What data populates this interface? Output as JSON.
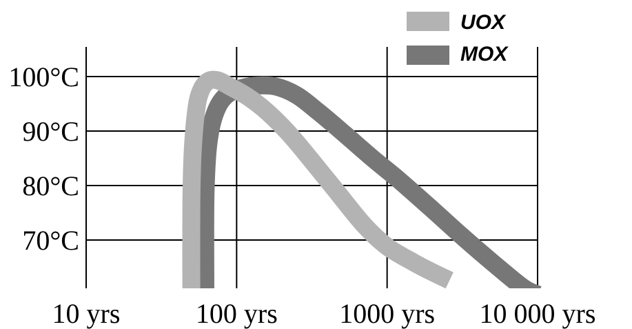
{
  "chart_data": {
    "type": "line",
    "title": "",
    "xlabel": "",
    "ylabel": "",
    "x_scale": "log",
    "xlim": [
      10,
      10000
    ],
    "ylim": [
      60,
      105
    ],
    "grid": true,
    "legend_position": "top-right",
    "x_ticks": [
      {
        "value": 10,
        "label": "10 yrs"
      },
      {
        "value": 100,
        "label": "100 yrs"
      },
      {
        "value": 1000,
        "label": "1000 yrs"
      },
      {
        "value": 10000,
        "label": "10 000 yrs"
      }
    ],
    "y_ticks": [
      {
        "value": 70,
        "label": "70°C"
      },
      {
        "value": 80,
        "label": "80°C"
      },
      {
        "value": 90,
        "label": "90°C"
      },
      {
        "value": 100,
        "label": "100°C"
      }
    ],
    "series": [
      {
        "name": "UOX",
        "color": "#b3b3b3",
        "x": [
          50,
          50,
          51,
          54,
          58,
          65,
          75,
          90,
          120,
          160,
          220,
          300,
          450,
          700,
          1000,
          1500,
          2000,
          2600
        ],
        "y": [
          60,
          76,
          86,
          94,
          97.5,
          99.2,
          99.3,
          98.2,
          96.2,
          93.5,
          89.7,
          85.3,
          79.3,
          72.8,
          68.8,
          65.9,
          64.1,
          62.6
        ]
      },
      {
        "name": "MOX",
        "color": "#777777",
        "x": [
          62,
          62,
          64,
          68,
          75,
          85,
          100,
          130,
          180,
          250,
          350,
          500,
          800,
          1200,
          2000,
          3000,
          5000,
          8000,
          10000
        ],
        "y": [
          60,
          77,
          86,
          91,
          94.5,
          96.5,
          97.6,
          98.3,
          98.2,
          96.6,
          93.5,
          89.9,
          85.0,
          81.0,
          75.6,
          71.2,
          65.9,
          61.3,
          60
        ]
      }
    ]
  }
}
